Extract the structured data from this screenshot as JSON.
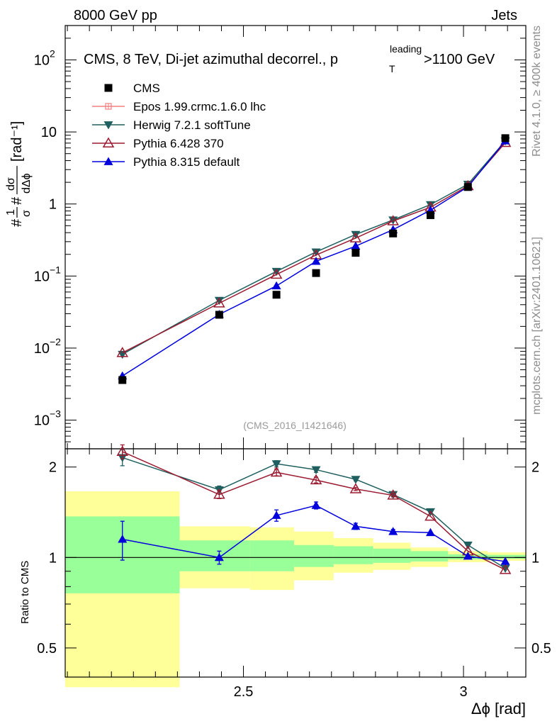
{
  "header": {
    "left": "8000 GeV pp",
    "right": "Jets"
  },
  "side_labels": {
    "rivet": "Rivet 4.1.0, ≥ 400k events",
    "mcplots": "mcplots.cern.ch [arXiv:2401.10621]"
  },
  "chart_data": {
    "type": "line",
    "title": "CMS, 8 TeV, Di-jet azimuthal decorrel., p",
    "title_sup": "leading",
    "title_sub": "T",
    "title_suffix": ">1100 GeV",
    "watermark": "(CMS_2016_I1421646)",
    "xlabel": "Δϕ [rad]",
    "ylabel_main": "[rad⁻¹]",
    "ylabel_ratio": "Ratio to CMS",
    "xlim": [
      2.095,
      3.1416
    ],
    "ylim_main": [
      0.0004,
      300
    ],
    "ylim_ratio": [
      0.4,
      2.3
    ],
    "x_ticks": [
      {
        "value": 2.5,
        "label": "2.5"
      },
      {
        "value": 3.0,
        "label": "3"
      }
    ],
    "y_ticks_main": [
      {
        "value": 100,
        "base": "10",
        "exp": "2"
      },
      {
        "value": 10,
        "base": "10",
        "exp": ""
      },
      {
        "value": 1,
        "base": "1",
        "exp": ""
      },
      {
        "value": 0.1,
        "base": "10",
        "exp": "−1"
      },
      {
        "value": 0.01,
        "base": "10",
        "exp": "−2"
      },
      {
        "value": 0.001,
        "base": "10",
        "exp": "−3"
      }
    ],
    "y_ticks_ratio": [
      {
        "value": 0.5,
        "label": "0.5"
      },
      {
        "value": 1,
        "label": "1"
      },
      {
        "value": 2,
        "label": "2"
      }
    ],
    "legend": [
      {
        "name": "CMS",
        "color": "#000000",
        "marker": "square"
      },
      {
        "name": "Epos 1.99.crmc.1.6.0 lhc",
        "color": "#f08080",
        "marker": "cross"
      },
      {
        "name": "Herwig 7.2.1 softTune",
        "color": "#1f5f5f",
        "marker": "tri-down"
      },
      {
        "name": "Pythia 6.428 370",
        "color": "#9b1b30",
        "marker": "tri-up-open"
      },
      {
        "name": "Pythia 8.315 default",
        "color": "#0000dd",
        "marker": "tri-up"
      }
    ],
    "x": [
      2.225,
      2.445,
      2.575,
      2.665,
      2.755,
      2.84,
      2.925,
      3.01,
      3.095
    ],
    "cms": [
      0.0036,
      0.029,
      0.055,
      0.11,
      0.21,
      0.39,
      0.7,
      1.72,
      8.2
    ],
    "series": [
      {
        "name": "Herwig 7.2.1 softTune",
        "values": [
          0.0082,
          0.046,
          0.116,
          0.216,
          0.378,
          0.6,
          0.98,
          1.88,
          7.5
        ],
        "ratio": [
          2.15,
          1.68,
          2.05,
          1.96,
          1.82,
          1.62,
          1.42,
          1.1,
          0.92
        ],
        "ratio_err": [
          0.13,
          0.05,
          0.05,
          0.04,
          0.02,
          0.02,
          0.01,
          0.01,
          0.01
        ]
      },
      {
        "name": "Pythia 6.428 370",
        "values": [
          0.0086,
          0.042,
          0.105,
          0.196,
          0.336,
          0.58,
          0.9,
          1.78,
          7.1
        ],
        "ratio": [
          2.25,
          1.62,
          1.92,
          1.81,
          1.69,
          1.61,
          1.37,
          1.05,
          0.91
        ],
        "ratio_err": [
          0.12,
          0.05,
          0.05,
          0.04,
          0.02,
          0.02,
          0.01,
          0.01,
          0.01
        ]
      },
      {
        "name": "Pythia 8.315 default",
        "values": [
          0.0041,
          0.0293,
          0.073,
          0.16,
          0.26,
          0.44,
          0.82,
          1.73,
          7.5
        ],
        "ratio": [
          1.15,
          1.0,
          1.38,
          1.49,
          1.27,
          1.22,
          1.21,
          1.01,
          0.97
        ],
        "ratio_err": [
          0.17,
          0.05,
          0.06,
          0.04,
          0.03,
          0.02,
          0.01,
          0.01,
          0.01
        ]
      }
    ],
    "bands": [
      {
        "x0": 2.095,
        "x1": 2.355,
        "stat": [
          0.76,
          1.37
        ],
        "syst": [
          0.37,
          1.66
        ]
      },
      {
        "x0": 2.355,
        "x1": 2.515,
        "stat": [
          0.9,
          1.14
        ],
        "syst": [
          0.79,
          1.27
        ]
      },
      {
        "x0": 2.515,
        "x1": 2.615,
        "stat": [
          0.9,
          1.14
        ],
        "syst": [
          0.78,
          1.26
        ]
      },
      {
        "x0": 2.615,
        "x1": 2.705,
        "stat": [
          0.93,
          1.1
        ],
        "syst": [
          0.84,
          1.22
        ]
      },
      {
        "x0": 2.705,
        "x1": 2.795,
        "stat": [
          0.95,
          1.09
        ],
        "syst": [
          0.89,
          1.16
        ]
      },
      {
        "x0": 2.795,
        "x1": 2.88,
        "stat": [
          0.96,
          1.07
        ],
        "syst": [
          0.91,
          1.12
        ]
      },
      {
        "x0": 2.88,
        "x1": 2.965,
        "stat": [
          0.97,
          1.05
        ],
        "syst": [
          0.93,
          1.08
        ]
      },
      {
        "x0": 2.965,
        "x1": 3.055,
        "stat": [
          0.985,
          1.025
        ],
        "syst": [
          0.965,
          1.05
        ]
      },
      {
        "x0": 3.055,
        "x1": 3.1416,
        "stat": [
          0.99,
          1.02
        ],
        "syst": [
          0.975,
          1.04
        ]
      }
    ]
  }
}
